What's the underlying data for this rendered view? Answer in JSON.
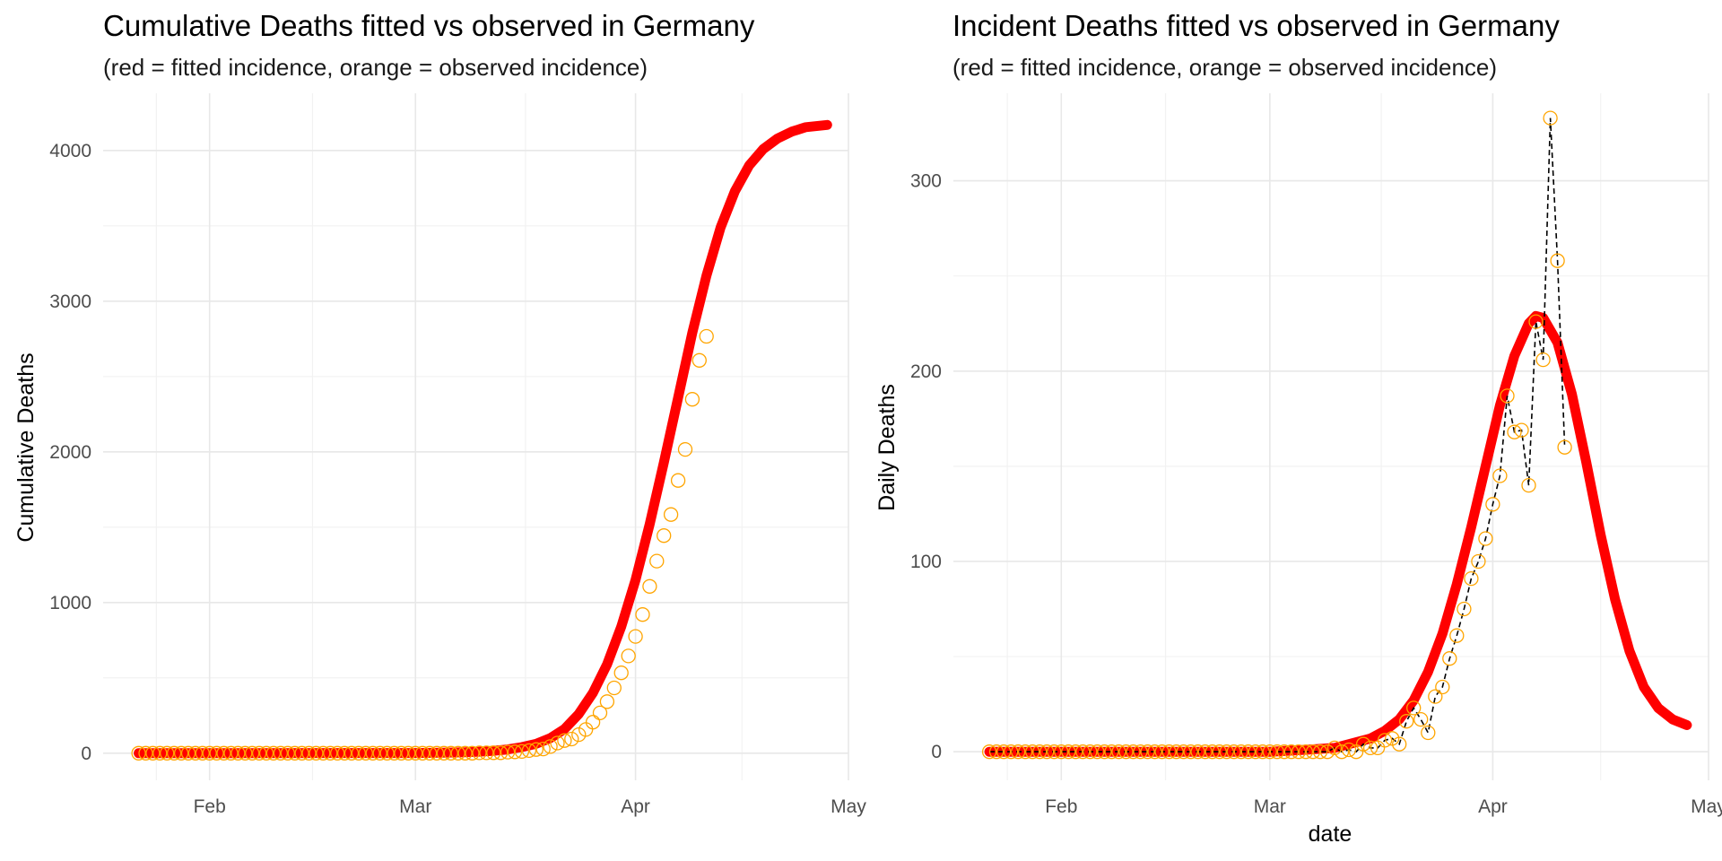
{
  "chart_data": [
    {
      "type": "line",
      "title": "Cumulative Deaths fitted vs observed in Germany",
      "subtitle": "(red = fitted incidence, orange = observed incidence)",
      "xlabel": "",
      "ylabel": "Cumulative Deaths",
      "x_tick_labels": [
        "Feb",
        "Mar",
        "Apr",
        "May"
      ],
      "x_ticks": [
        "2020-02-01",
        "2020-03-01",
        "2020-04-01",
        "2020-05-01"
      ],
      "xlim": [
        "2020-01-17",
        "2020-05-01"
      ],
      "y_ticks": [
        0,
        1000,
        2000,
        3000,
        4000
      ],
      "ylim": [
        -180,
        4380
      ],
      "grid": true,
      "fitted_color": "#ff0000",
      "observed_color": "#ffa500",
      "fitted": {
        "start": "2020-01-22",
        "end": "2020-04-28",
        "points": [
          [
            "2020-01-22",
            0
          ],
          [
            "2020-03-01",
            1
          ],
          [
            "2020-03-05",
            3
          ],
          [
            "2020-03-08",
            6
          ],
          [
            "2020-03-10",
            10
          ],
          [
            "2020-03-12",
            16
          ],
          [
            "2020-03-14",
            25
          ],
          [
            "2020-03-16",
            40
          ],
          [
            "2020-03-18",
            62
          ],
          [
            "2020-03-20",
            100
          ],
          [
            "2020-03-22",
            160
          ],
          [
            "2020-03-24",
            260
          ],
          [
            "2020-03-26",
            400
          ],
          [
            "2020-03-28",
            590
          ],
          [
            "2020-03-30",
            840
          ],
          [
            "2020-04-01",
            1150
          ],
          [
            "2020-04-03",
            1520
          ],
          [
            "2020-04-05",
            1930
          ],
          [
            "2020-04-07",
            2360
          ],
          [
            "2020-04-09",
            2790
          ],
          [
            "2020-04-11",
            3170
          ],
          [
            "2020-04-13",
            3490
          ],
          [
            "2020-04-15",
            3730
          ],
          [
            "2020-04-17",
            3900
          ],
          [
            "2020-04-19",
            4010
          ],
          [
            "2020-04-21",
            4080
          ],
          [
            "2020-04-23",
            4125
          ],
          [
            "2020-04-25",
            4155
          ],
          [
            "2020-04-28",
            4170
          ]
        ]
      },
      "observed": {
        "start": "2020-01-22",
        "values": [
          0,
          0,
          0,
          0,
          0,
          0,
          0,
          0,
          0,
          0,
          0,
          0,
          0,
          0,
          0,
          0,
          0,
          0,
          0,
          0,
          0,
          0,
          0,
          0,
          0,
          0,
          0,
          0,
          0,
          0,
          0,
          0,
          0,
          0,
          0,
          0,
          0,
          0,
          0,
          0,
          0,
          0,
          0,
          0,
          0,
          0,
          0,
          0,
          2,
          2,
          3,
          3,
          7,
          9,
          11,
          17,
          24,
          28,
          44,
          67,
          84,
          94,
          123,
          157,
          206,
          267,
          342,
          433,
          533,
          645,
          775,
          920,
          1107,
          1275,
          1444,
          1584,
          1810,
          2016,
          2349,
          2607,
          2767
        ]
      }
    },
    {
      "type": "line",
      "title": "Incident Deaths fitted vs observed in Germany",
      "subtitle": "(red = fitted incidence, orange = observed incidence)",
      "xlabel": "date",
      "ylabel": "Daily Deaths",
      "x_tick_labels": [
        "Feb",
        "Mar",
        "Apr",
        "May"
      ],
      "x_ticks": [
        "2020-02-01",
        "2020-03-01",
        "2020-04-01",
        "2020-05-01"
      ],
      "xlim": [
        "2020-01-17",
        "2020-05-01"
      ],
      "y_ticks": [
        0,
        100,
        200,
        300
      ],
      "ylim": [
        -15,
        346
      ],
      "grid": true,
      "fitted_color": "#ff0000",
      "observed_color": "#ffa500",
      "observed_line_color": "#000000",
      "fitted": {
        "start": "2020-01-22",
        "end": "2020-04-28",
        "points": [
          [
            "2020-01-22",
            0
          ],
          [
            "2020-03-01",
            0
          ],
          [
            "2020-03-06",
            1
          ],
          [
            "2020-03-10",
            2
          ],
          [
            "2020-03-13",
            5
          ],
          [
            "2020-03-15",
            7
          ],
          [
            "2020-03-17",
            11
          ],
          [
            "2020-03-19",
            17
          ],
          [
            "2020-03-21",
            27
          ],
          [
            "2020-03-23",
            42
          ],
          [
            "2020-03-25",
            62
          ],
          [
            "2020-03-27",
            88
          ],
          [
            "2020-03-29",
            118
          ],
          [
            "2020-03-31",
            150
          ],
          [
            "2020-04-02",
            182
          ],
          [
            "2020-04-04",
            208
          ],
          [
            "2020-04-06",
            225
          ],
          [
            "2020-04-07",
            229
          ],
          [
            "2020-04-08",
            228
          ],
          [
            "2020-04-10",
            215
          ],
          [
            "2020-04-12",
            188
          ],
          [
            "2020-04-14",
            152
          ],
          [
            "2020-04-16",
            114
          ],
          [
            "2020-04-18",
            80
          ],
          [
            "2020-04-20",
            53
          ],
          [
            "2020-04-22",
            34
          ],
          [
            "2020-04-24",
            23
          ],
          [
            "2020-04-26",
            17
          ],
          [
            "2020-04-28",
            14
          ]
        ]
      },
      "observed": {
        "start": "2020-01-22",
        "values": [
          0,
          0,
          0,
          0,
          0,
          0,
          0,
          0,
          0,
          0,
          0,
          0,
          0,
          0,
          0,
          0,
          0,
          0,
          0,
          0,
          0,
          0,
          0,
          0,
          0,
          0,
          0,
          0,
          0,
          0,
          0,
          0,
          0,
          0,
          0,
          0,
          0,
          0,
          0,
          0,
          0,
          0,
          0,
          0,
          0,
          0,
          0,
          0,
          2,
          0,
          1,
          0,
          4,
          2,
          2,
          6,
          7,
          4,
          16,
          23,
          17,
          10,
          29,
          34,
          49,
          61,
          75,
          91,
          100,
          112,
          130,
          145,
          187,
          168,
          169,
          140,
          226,
          206,
          333,
          258,
          160
        ]
      }
    }
  ]
}
